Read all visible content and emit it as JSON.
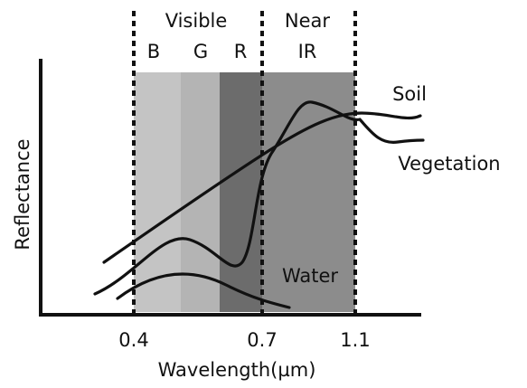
{
  "regions": [
    {
      "label": "Visible"
    },
    {
      "line1": "Near",
      "line2": "IR"
    }
  ],
  "bands": [
    "B",
    "G",
    "R"
  ],
  "curves": [
    "Soil",
    "Vegetation",
    "Water"
  ],
  "axes": {
    "y_title": "Reflectance",
    "x_title": "Wavelength(µm)",
    "x_ticks": [
      "0.4",
      "0.7",
      "1.1"
    ]
  }
}
